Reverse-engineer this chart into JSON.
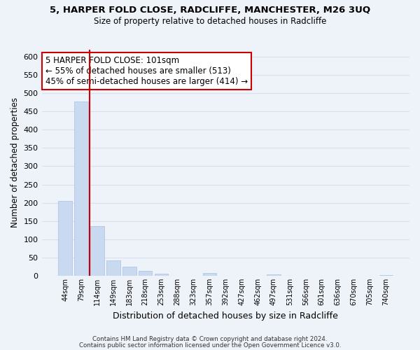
{
  "title": "5, HARPER FOLD CLOSE, RADCLIFFE, MANCHESTER, M26 3UQ",
  "subtitle": "Size of property relative to detached houses in Radcliffe",
  "xlabel": "Distribution of detached houses by size in Radcliffe",
  "ylabel": "Number of detached properties",
  "bar_labels": [
    "44sqm",
    "79sqm",
    "114sqm",
    "149sqm",
    "183sqm",
    "218sqm",
    "253sqm",
    "288sqm",
    "323sqm",
    "357sqm",
    "392sqm",
    "427sqm",
    "462sqm",
    "497sqm",
    "531sqm",
    "566sqm",
    "601sqm",
    "636sqm",
    "670sqm",
    "705sqm",
    "740sqm"
  ],
  "bar_values": [
    205,
    477,
    137,
    43,
    25,
    14,
    5,
    0,
    0,
    8,
    0,
    0,
    0,
    4,
    0,
    0,
    0,
    0,
    0,
    0,
    2
  ],
  "bar_color": "#c9d9f0",
  "bar_edge_color": "#a8c0e8",
  "vline_x": 1.5,
  "vline_color": "#cc0000",
  "ylim": [
    0,
    620
  ],
  "yticks": [
    0,
    50,
    100,
    150,
    200,
    250,
    300,
    350,
    400,
    450,
    500,
    550,
    600
  ],
  "annotation_title": "5 HARPER FOLD CLOSE: 101sqm",
  "annotation_line1": "← 55% of detached houses are smaller (513)",
  "annotation_line2": "45% of semi-detached houses are larger (414) →",
  "annotation_box_color": "#ffffff",
  "annotation_box_edge": "#cc0000",
  "footnote1": "Contains HM Land Registry data © Crown copyright and database right 2024.",
  "footnote2": "Contains public sector information licensed under the Open Government Licence v3.0.",
  "background_color": "#eef2f9",
  "grid_color": "#d8e0f0",
  "fig_width": 6.0,
  "fig_height": 5.0
}
